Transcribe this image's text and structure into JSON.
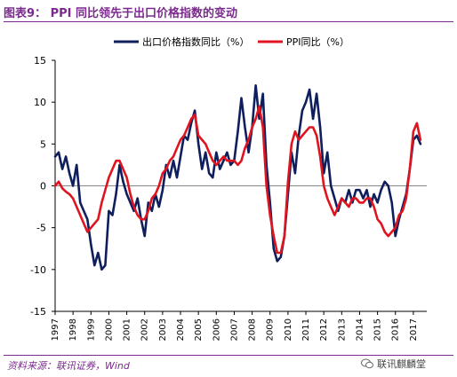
{
  "figure_title": "图表9：  PPI 同比领先于出口价格指数的变动",
  "source_note": "资料来源：联讯证券，Wind",
  "watermark_text": "联讯麒麟堂",
  "colors": {
    "accent": "#7a2a8c",
    "export_series": "#0f1e5c",
    "ppi_series": "#e0141e"
  },
  "chart_data": {
    "type": "line",
    "x_unit": "year",
    "xlim": [
      1997,
      2017.75
    ],
    "ylim": [
      -15,
      15
    ],
    "yticks": [
      -15,
      -10,
      -5,
      0,
      5,
      10,
      15
    ],
    "xtick_labels": [
      "1997",
      "1998",
      "1999",
      "2000",
      "2001",
      "2002",
      "2003",
      "2004",
      "2005",
      "2006",
      "2007",
      "2008",
      "2009",
      "2010",
      "2011",
      "2012",
      "2013",
      "2014",
      "2015",
      "2016",
      "2017"
    ],
    "legend_position": "top",
    "grid": false,
    "series": [
      {
        "name": "出口价格指数同比（%）",
        "color": "#0f1e5c",
        "x": [
          1997.0,
          1997.2,
          1997.4,
          1997.6,
          1997.8,
          1998.0,
          1998.2,
          1998.4,
          1998.6,
          1998.8,
          1999.0,
          1999.2,
          1999.4,
          1999.6,
          1999.8,
          2000.0,
          2000.2,
          2000.4,
          2000.6,
          2000.8,
          2001.0,
          2001.2,
          2001.4,
          2001.6,
          2001.8,
          2002.0,
          2002.2,
          2002.4,
          2002.6,
          2002.8,
          2003.0,
          2003.2,
          2003.4,
          2003.6,
          2003.8,
          2004.0,
          2004.2,
          2004.4,
          2004.6,
          2004.8,
          2005.0,
          2005.2,
          2005.4,
          2005.6,
          2005.8,
          2006.0,
          2006.2,
          2006.4,
          2006.6,
          2006.8,
          2007.0,
          2007.2,
          2007.4,
          2007.6,
          2007.8,
          2008.0,
          2008.2,
          2008.4,
          2008.6,
          2008.8,
          2009.0,
          2009.2,
          2009.4,
          2009.6,
          2009.8,
          2010.0,
          2010.2,
          2010.4,
          2010.6,
          2010.8,
          2011.0,
          2011.2,
          2011.4,
          2011.6,
          2011.8,
          2012.0,
          2012.2,
          2012.4,
          2012.6,
          2012.8,
          2013.0,
          2013.2,
          2013.4,
          2013.6,
          2013.8,
          2014.0,
          2014.2,
          2014.4,
          2014.6,
          2014.8,
          2015.0,
          2015.2,
          2015.4,
          2015.6,
          2015.8,
          2016.0,
          2016.2,
          2016.4,
          2016.6,
          2016.8,
          2017.0,
          2017.2,
          2017.4
        ],
        "values": [
          3.5,
          4.0,
          2.0,
          3.5,
          1.5,
          0.0,
          2.5,
          -2.0,
          -3.0,
          -4.0,
          -7.0,
          -9.5,
          -8.0,
          -10.0,
          -9.5,
          -3.0,
          -3.5,
          -1.0,
          2.5,
          0.5,
          -1.0,
          -2.0,
          -3.0,
          -1.5,
          -4.0,
          -6.0,
          -2.0,
          -3.0,
          -1.0,
          -2.5,
          -0.5,
          2.5,
          1.0,
          3.0,
          1.0,
          3.5,
          6.0,
          5.5,
          7.5,
          9.0,
          5.0,
          2.0,
          4.0,
          1.5,
          1.0,
          4.0,
          2.0,
          3.0,
          4.0,
          2.5,
          3.0,
          6.5,
          10.5,
          7.0,
          4.0,
          7.0,
          12.0,
          8.0,
          11.0,
          2.5,
          -2.0,
          -7.5,
          -9.0,
          -8.5,
          -6.0,
          -1.0,
          4.0,
          1.5,
          6.0,
          9.0,
          10.0,
          11.5,
          8.0,
          11.0,
          7.0,
          1.5,
          4.0,
          0.0,
          -1.5,
          -3.0,
          -1.5,
          -2.0,
          -0.5,
          -2.0,
          -0.5,
          -0.5,
          -1.5,
          -0.5,
          -2.5,
          -1.0,
          -2.0,
          -0.5,
          0.5,
          0.0,
          -2.0,
          -6.0,
          -4.0,
          -2.5,
          -1.0,
          2.0,
          5.5,
          6.0,
          5.0
        ]
      },
      {
        "name": "PPI同比（%）",
        "color": "#e0141e",
        "x": [
          1997.0,
          1997.2,
          1997.4,
          1997.6,
          1997.8,
          1998.0,
          1998.2,
          1998.4,
          1998.6,
          1998.8,
          1999.0,
          1999.2,
          1999.4,
          1999.6,
          1999.8,
          2000.0,
          2000.2,
          2000.4,
          2000.6,
          2000.8,
          2001.0,
          2001.2,
          2001.4,
          2001.6,
          2001.8,
          2002.0,
          2002.2,
          2002.4,
          2002.6,
          2002.8,
          2003.0,
          2003.2,
          2003.4,
          2003.6,
          2003.8,
          2004.0,
          2004.2,
          2004.4,
          2004.6,
          2004.8,
          2005.0,
          2005.2,
          2005.4,
          2005.6,
          2005.8,
          2006.0,
          2006.2,
          2006.4,
          2006.6,
          2006.8,
          2007.0,
          2007.2,
          2007.4,
          2007.6,
          2007.8,
          2008.0,
          2008.2,
          2008.4,
          2008.6,
          2008.8,
          2009.0,
          2009.2,
          2009.4,
          2009.6,
          2009.8,
          2010.0,
          2010.2,
          2010.4,
          2010.6,
          2010.8,
          2011.0,
          2011.2,
          2011.4,
          2011.6,
          2011.8,
          2012.0,
          2012.2,
          2012.4,
          2012.6,
          2012.8,
          2013.0,
          2013.2,
          2013.4,
          2013.6,
          2013.8,
          2014.0,
          2014.2,
          2014.4,
          2014.6,
          2014.8,
          2015.0,
          2015.2,
          2015.4,
          2015.6,
          2015.8,
          2016.0,
          2016.2,
          2016.4,
          2016.6,
          2016.8,
          2017.0,
          2017.2,
          2017.4
        ],
        "values": [
          0.0,
          0.5,
          -0.3,
          -0.7,
          -1.0,
          -1.5,
          -2.5,
          -3.5,
          -4.5,
          -5.5,
          -5.0,
          -4.5,
          -4.0,
          -2.0,
          -0.5,
          1.0,
          2.0,
          3.0,
          3.0,
          2.0,
          1.0,
          -1.0,
          -2.5,
          -3.5,
          -4.0,
          -4.0,
          -3.0,
          -1.5,
          -1.0,
          0.0,
          1.5,
          2.0,
          3.0,
          3.5,
          4.5,
          5.5,
          6.0,
          7.0,
          8.0,
          8.5,
          6.0,
          5.5,
          5.0,
          4.0,
          3.0,
          2.5,
          3.0,
          3.5,
          3.0,
          3.0,
          3.0,
          2.5,
          3.0,
          4.5,
          5.5,
          7.0,
          8.0,
          9.5,
          7.0,
          0.0,
          -3.5,
          -6.0,
          -8.0,
          -8.0,
          -6.0,
          0.5,
          5.0,
          6.5,
          5.5,
          6.0,
          6.5,
          7.0,
          7.0,
          6.0,
          3.5,
          0.0,
          -1.5,
          -2.5,
          -3.5,
          -2.5,
          -1.5,
          -2.0,
          -2.5,
          -1.5,
          -1.5,
          -2.0,
          -2.0,
          -1.5,
          -1.5,
          -2.5,
          -4.0,
          -4.5,
          -5.5,
          -6.0,
          -5.5,
          -5.0,
          -3.5,
          -3.0,
          -1.5,
          2.0,
          6.5,
          7.5,
          5.5
        ]
      }
    ]
  }
}
